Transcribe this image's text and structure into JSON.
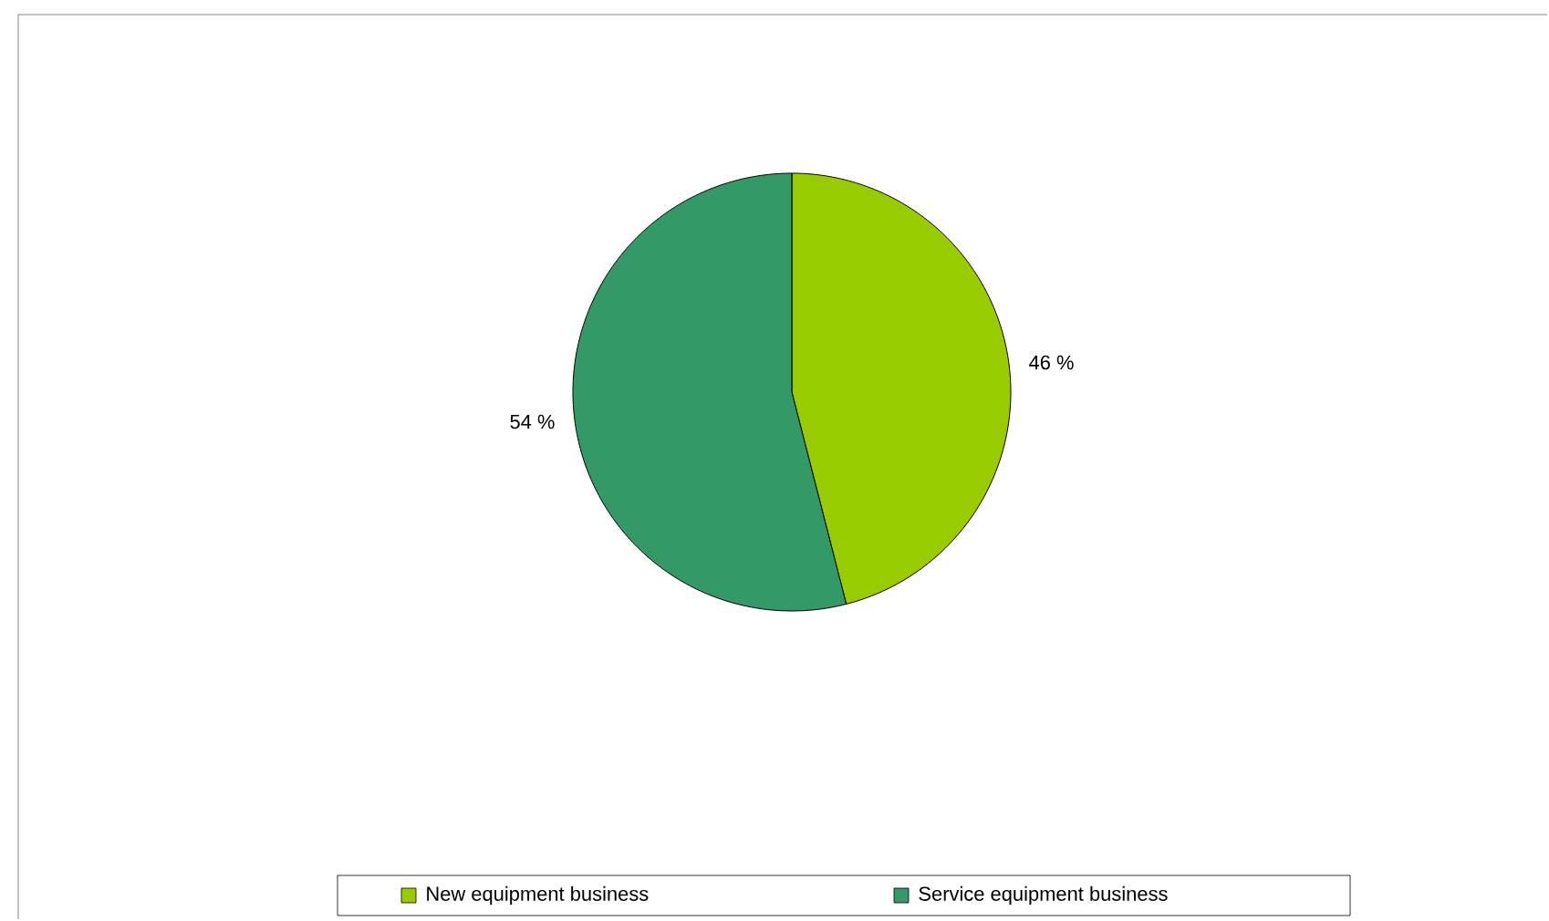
{
  "chart_data": {
    "type": "pie",
    "categories": [
      "New equipment business",
      "Service equipment business"
    ],
    "values": [
      46,
      54
    ],
    "colors": [
      "#99cc00",
      "#339966"
    ],
    "value_labels": [
      "46 %",
      "54 %"
    ],
    "legend": "bottom"
  }
}
